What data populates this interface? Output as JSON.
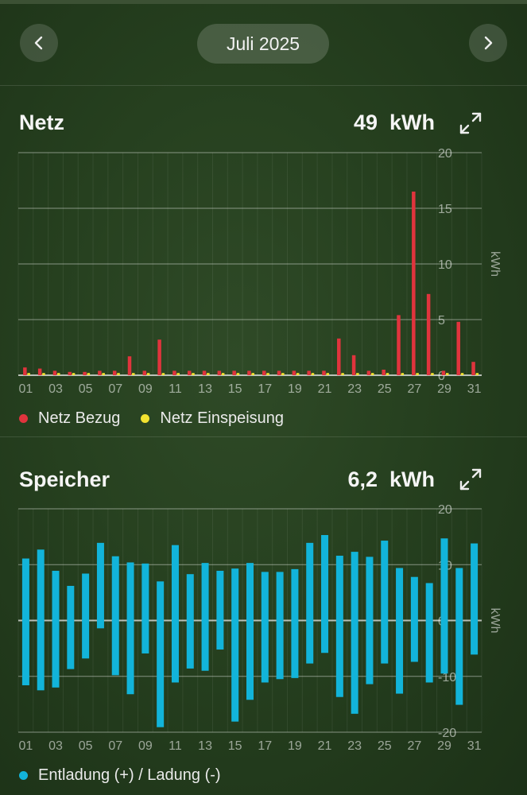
{
  "header": {
    "month": "Juli 2025"
  },
  "colors": {
    "bezug": "#e0343d",
    "einspeisung": "#f2e230",
    "speicher": "#12b4da"
  },
  "icons": {
    "prev": "chevron-left-icon",
    "next": "chevron-right-icon",
    "expand": "expand-arrows-icon"
  },
  "netz": {
    "title": "Netz",
    "total": "49",
    "unit": "kWh",
    "legend": [
      "Netz Bezug",
      "Netz Einspeisung"
    ]
  },
  "speicher": {
    "title": "Speicher",
    "total": "6,2",
    "unit": "kWh",
    "legend": [
      "Entladung (+) / Ladung (-)"
    ]
  },
  "chart_data": [
    {
      "type": "bar",
      "x": [
        "01",
        "02",
        "03",
        "04",
        "05",
        "06",
        "07",
        "08",
        "09",
        "10",
        "11",
        "12",
        "13",
        "14",
        "15",
        "16",
        "17",
        "18",
        "19",
        "20",
        "21",
        "22",
        "23",
        "24",
        "25",
        "26",
        "27",
        "28",
        "29",
        "30",
        "31"
      ],
      "xticks": [
        "01",
        "03",
        "05",
        "07",
        "09",
        "11",
        "13",
        "15",
        "17",
        "19",
        "21",
        "23",
        "25",
        "27",
        "29",
        "31"
      ],
      "series": [
        {
          "name": "Netz Bezug",
          "values": [
            0.7,
            0.6,
            0.4,
            0.3,
            0.3,
            0.4,
            0.4,
            1.7,
            0.4,
            3.2,
            0.4,
            0.4,
            0.4,
            0.4,
            0.4,
            0.4,
            0.4,
            0.4,
            0.4,
            0.4,
            0.4,
            3.3,
            1.8,
            0.4,
            0.5,
            5.4,
            16.5,
            7.3,
            0.4,
            4.8,
            1.2
          ]
        },
        {
          "name": "Netz Einspeisung",
          "values": [
            0.2,
            0.2,
            0.2,
            0.2,
            0.2,
            0.2,
            0.2,
            0.2,
            0.2,
            0.2,
            0.2,
            0.2,
            0.2,
            0.2,
            0.2,
            0.2,
            0.2,
            0.2,
            0.2,
            0.2,
            0.2,
            0.2,
            0.2,
            0.2,
            0.2,
            0.2,
            0.2,
            0.2,
            0.2,
            0.2,
            0.2
          ]
        }
      ],
      "ylabel": "kWh",
      "yticks": [
        0,
        5,
        10,
        15,
        20
      ],
      "ylim": [
        0,
        20
      ],
      "grid": true
    },
    {
      "type": "bar",
      "x": [
        "01",
        "02",
        "03",
        "04",
        "05",
        "06",
        "07",
        "08",
        "09",
        "10",
        "11",
        "12",
        "13",
        "14",
        "15",
        "16",
        "17",
        "18",
        "19",
        "20",
        "21",
        "22",
        "23",
        "24",
        "25",
        "26",
        "27",
        "28",
        "29",
        "30",
        "31"
      ],
      "xticks": [
        "01",
        "03",
        "05",
        "07",
        "09",
        "11",
        "13",
        "15",
        "17",
        "19",
        "21",
        "23",
        "25",
        "27",
        "29",
        "31"
      ],
      "series": [
        {
          "name": "Entladung (+)",
          "values": [
            11.1,
            12.7,
            8.9,
            6.2,
            8.4,
            13.9,
            11.5,
            10.4,
            10.2,
            7.0,
            13.5,
            8.3,
            10.3,
            8.9,
            9.3,
            10.3,
            8.7,
            8.7,
            9.2,
            13.9,
            15.3,
            11.6,
            12.3,
            11.4,
            14.3,
            9.4,
            7.8,
            6.7,
            14.7,
            9.4,
            13.8
          ]
        },
        {
          "name": "Ladung (-)",
          "values": [
            -11.6,
            -12.5,
            -12.0,
            -8.7,
            -6.8,
            -1.4,
            -9.8,
            -13.2,
            -5.9,
            -19.1,
            -11.1,
            -8.6,
            -9.0,
            -5.2,
            -18.1,
            -14.2,
            -11.1,
            -10.5,
            -10.3,
            -7.7,
            -5.8,
            -13.7,
            -16.7,
            -11.4,
            -7.7,
            -13.1,
            -7.4,
            -11.1,
            -9.5,
            -15.1,
            -6.1
          ]
        }
      ],
      "ylabel": "kWh",
      "yticks": [
        20,
        10,
        0,
        -10,
        -20
      ],
      "ylim": [
        -20,
        20
      ],
      "grid": true
    }
  ]
}
